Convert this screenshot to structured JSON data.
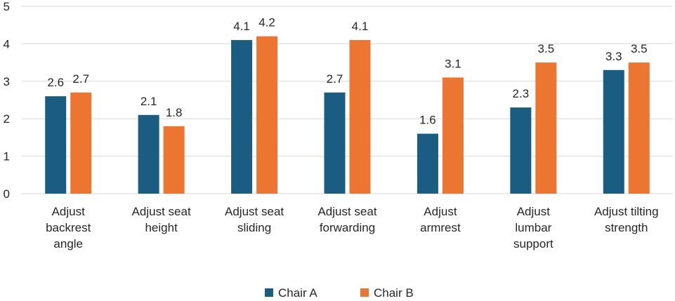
{
  "chart_data": {
    "type": "bar",
    "categories": [
      [
        "Adjust",
        "backrest",
        "angle"
      ],
      [
        "Adjust seat",
        "height"
      ],
      [
        "Adjust seat",
        "sliding"
      ],
      [
        "Adjust seat",
        "forwarding"
      ],
      [
        "Adjust",
        "armrest"
      ],
      [
        "Adjust",
        "lumbar",
        "support"
      ],
      [
        "Adjust tilting",
        "strength"
      ]
    ],
    "series": [
      {
        "name": "Chair A",
        "color": "#1b5c82",
        "values": [
          2.6,
          2.1,
          4.1,
          2.7,
          1.6,
          2.3,
          3.3
        ]
      },
      {
        "name": "Chair B",
        "color": "#ed7532",
        "values": [
          2.7,
          1.8,
          4.2,
          4.1,
          3.1,
          3.5,
          3.5
        ]
      }
    ],
    "ylim": [
      0,
      5
    ],
    "yticks": [
      0,
      1,
      2,
      3,
      4,
      5
    ],
    "grid": true,
    "legend_position": "bottom",
    "data_labels": true
  }
}
